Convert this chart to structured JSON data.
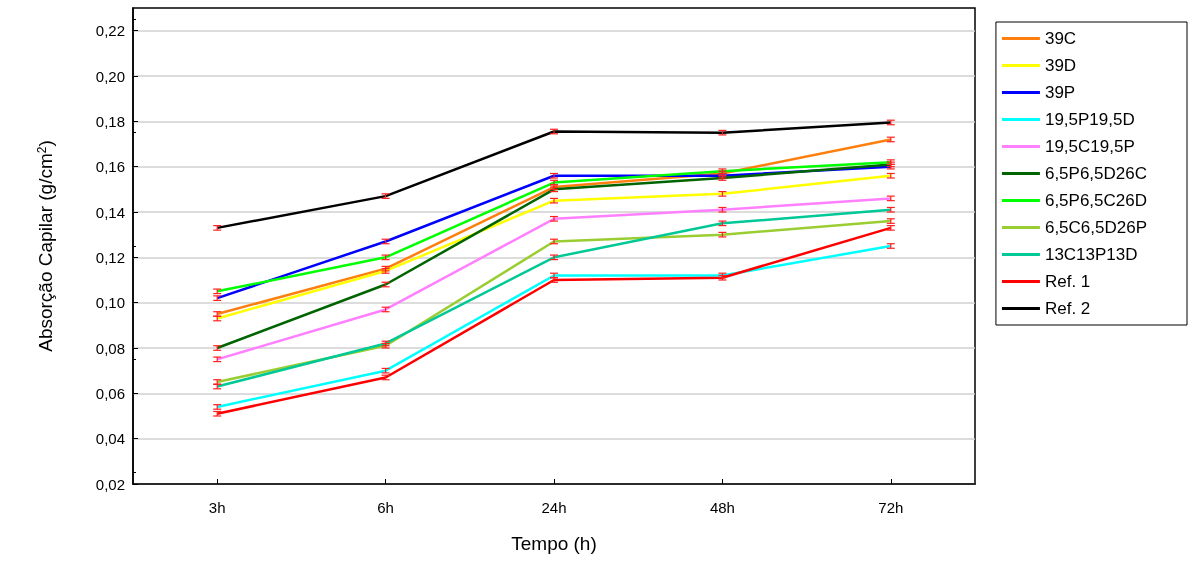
{
  "chart_data": {
    "type": "line",
    "xlabel": "Tempo (h)",
    "ylabel": "Absorção Capilar (g/cm$^{2}$)",
    "categories": [
      "3h",
      "6h",
      "24h",
      "48h",
      "72h"
    ],
    "ylim": [
      0.02,
      0.23
    ],
    "yticks": [
      {
        "value": 0.02,
        "label": "0,02"
      },
      {
        "value": 0.04,
        "label": "0,04"
      },
      {
        "value": 0.06,
        "label": "0,06"
      },
      {
        "value": 0.08,
        "label": "0,08"
      },
      {
        "value": 0.1,
        "label": "0,10"
      },
      {
        "value": 0.12,
        "label": "0,12"
      },
      {
        "value": 0.14,
        "label": "0,14"
      },
      {
        "value": 0.16,
        "label": "0,16"
      },
      {
        "value": 0.18,
        "label": "0,18"
      },
      {
        "value": 0.2,
        "label": "0,20"
      },
      {
        "value": 0.22,
        "label": "0,22"
      }
    ],
    "grid": "y",
    "legend": "right",
    "marker": "none",
    "line_style": "solid",
    "series": [
      {
        "name": "39C",
        "color": "#ff7f0e",
        "values": [
          0.095,
          0.115,
          0.151,
          0.157,
          0.172
        ],
        "errors": [
          0.001,
          0.001,
          0.001,
          0.001,
          0.001
        ]
      },
      {
        "name": "39D",
        "color": "#ffff00",
        "values": [
          0.093,
          0.114,
          0.145,
          0.148,
          0.156
        ],
        "errors": [
          0.001,
          0.001,
          0.001,
          0.001,
          0.001
        ]
      },
      {
        "name": "39P",
        "color": "#0000ff",
        "values": [
          0.102,
          0.127,
          0.156,
          0.156,
          0.16
        ],
        "errors": [
          0.001,
          0.001,
          0.001,
          0.001,
          0.001
        ]
      },
      {
        "name": "19,5P19,5D",
        "color": "#00ffff",
        "values": [
          0.054,
          0.07,
          0.112,
          0.112,
          0.125
        ],
        "errors": [
          0.001,
          0.001,
          0.001,
          0.001,
          0.001
        ]
      },
      {
        "name": "19,5C19,5P",
        "color": "#ff80ff",
        "values": [
          0.075,
          0.097,
          0.137,
          0.141,
          0.146
        ],
        "errors": [
          0.001,
          0.001,
          0.001,
          0.001,
          0.001
        ]
      },
      {
        "name": "6,5P6,5D26C",
        "color": "#006400",
        "values": [
          0.08,
          0.108,
          0.15,
          0.155,
          0.161
        ],
        "errors": [
          0.001,
          0.001,
          0.001,
          0.001,
          0.001
        ]
      },
      {
        "name": "6,5P6,5C26D",
        "color": "#00ff00",
        "values": [
          0.105,
          0.12,
          0.153,
          0.158,
          0.162
        ],
        "errors": [
          0.001,
          0.001,
          0.001,
          0.001,
          0.001
        ]
      },
      {
        "name": "6,5C6,5D26P",
        "color": "#9acd32",
        "values": [
          0.065,
          0.081,
          0.127,
          0.13,
          0.136
        ],
        "errors": [
          0.001,
          0.001,
          0.001,
          0.001,
          0.001
        ]
      },
      {
        "name": "13C13P13D",
        "color": "#00c896",
        "values": [
          0.063,
          0.082,
          0.12,
          0.135,
          0.141
        ],
        "errors": [
          0.001,
          0.001,
          0.001,
          0.001,
          0.001
        ]
      },
      {
        "name": "Ref. 1",
        "color": "#ff0000",
        "values": [
          0.051,
          0.067,
          0.11,
          0.111,
          0.133
        ],
        "errors": [
          0.001,
          0.001,
          0.001,
          0.001,
          0.001
        ]
      },
      {
        "name": "Ref. 2",
        "color": "#000000",
        "values": [
          0.133,
          0.147,
          0.1755,
          0.175,
          0.1795
        ],
        "errors": [
          0.001,
          0.001,
          0.001,
          0.001,
          0.001
        ]
      }
    ]
  }
}
